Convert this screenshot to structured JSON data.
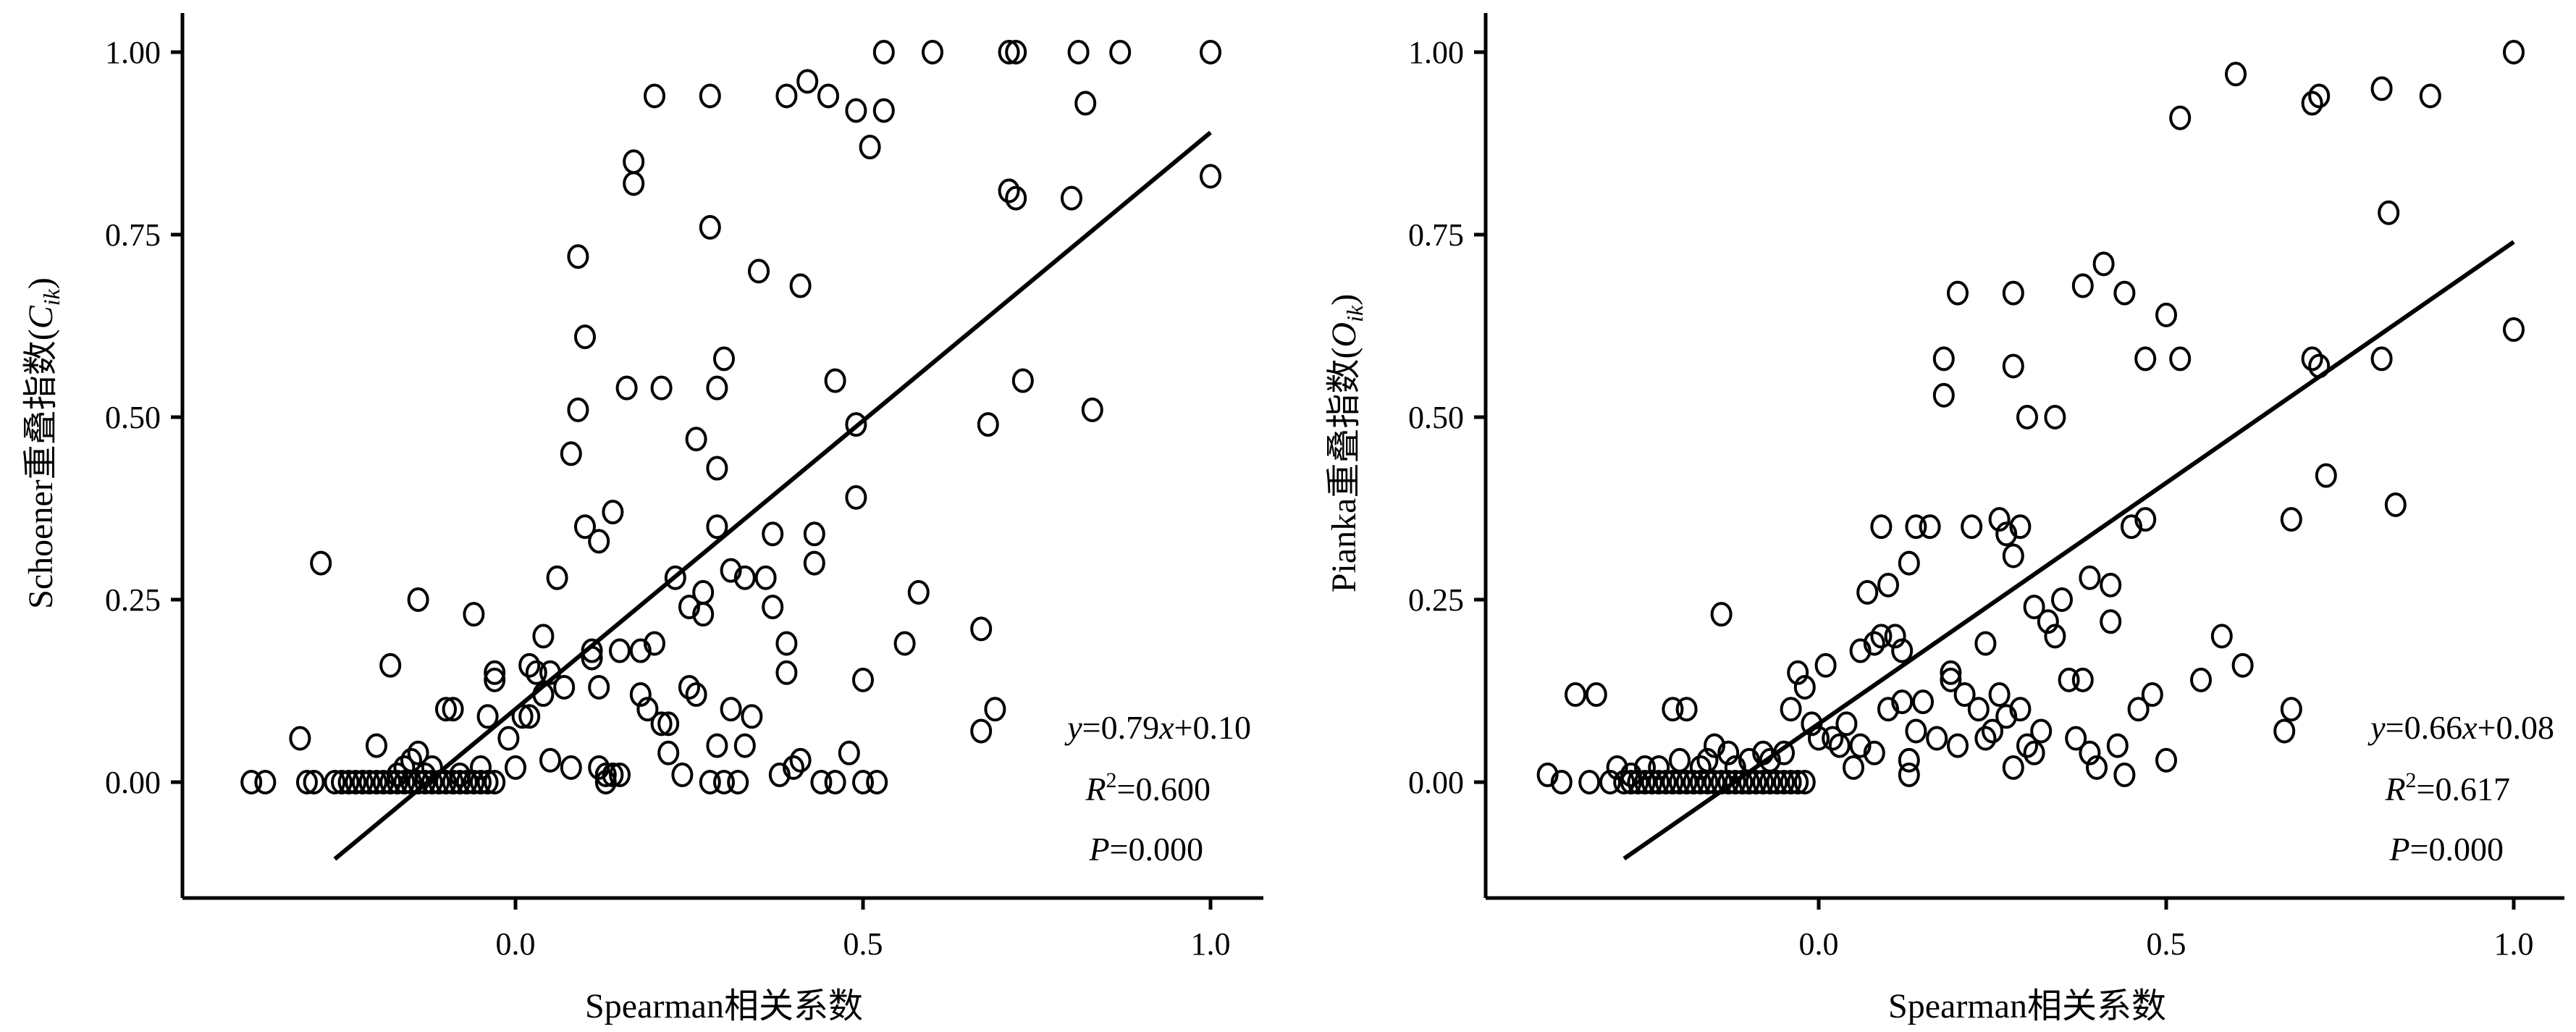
{
  "chart_data": [
    {
      "type": "scatter",
      "xlabel": "Spearman相关系数",
      "ylabel_main": "Schoener重叠指数(",
      "ylabel_var": "C",
      "ylabel_sub": "ik",
      "ylabel_close": ")",
      "xlim": [
        -0.47,
        1.07
      ],
      "ylim": [
        -0.16,
        1.06
      ],
      "xticks": [
        0.0,
        0.5,
        1.0
      ],
      "xtick_labels": [
        "0.0",
        "0.5",
        "1.0"
      ],
      "yticks": [
        0.0,
        0.25,
        0.5,
        0.75,
        1.0
      ],
      "ytick_labels": [
        "0.00",
        "0.25",
        "0.50",
        "0.75",
        "1.00"
      ],
      "fit": {
        "slope": 0.79,
        "intercept": 0.1,
        "x_range": [
          -0.26,
          1.0
        ]
      },
      "eq_y": "y",
      "eq_mid": "=0.79",
      "eq_x": "x",
      "eq_end": "+0.10",
      "r2_label": "R",
      "r2_sup": "2",
      "r2_value": "=0.600",
      "p_label": "P",
      "p_value": "=0.000",
      "points": [
        [
          -0.38,
          0
        ],
        [
          -0.36,
          0
        ],
        [
          -0.31,
          0.06
        ],
        [
          -0.3,
          0
        ],
        [
          -0.29,
          0
        ],
        [
          -0.28,
          0.3
        ],
        [
          -0.26,
          0
        ],
        [
          -0.25,
          0
        ],
        [
          -0.24,
          0
        ],
        [
          -0.23,
          0
        ],
        [
          -0.22,
          0
        ],
        [
          -0.21,
          0
        ],
        [
          -0.2,
          0
        ],
        [
          -0.19,
          0
        ],
        [
          -0.18,
          0
        ],
        [
          -0.17,
          0
        ],
        [
          -0.16,
          0
        ],
        [
          -0.15,
          0
        ],
        [
          -0.14,
          0
        ],
        [
          -0.13,
          0
        ],
        [
          -0.12,
          0
        ],
        [
          -0.11,
          0
        ],
        [
          -0.1,
          0
        ],
        [
          -0.09,
          0
        ],
        [
          -0.08,
          0
        ],
        [
          -0.07,
          0
        ],
        [
          -0.06,
          0
        ],
        [
          -0.05,
          0
        ],
        [
          -0.04,
          0
        ],
        [
          -0.03,
          0
        ],
        [
          -0.2,
          0.05
        ],
        [
          -0.18,
          0.16
        ],
        [
          -0.17,
          0.01
        ],
        [
          -0.16,
          0.02
        ],
        [
          -0.15,
          0.03
        ],
        [
          -0.14,
          0.04
        ],
        [
          -0.14,
          0.25
        ],
        [
          -0.13,
          0.01
        ],
        [
          -0.12,
          0.02
        ],
        [
          -0.1,
          0.1
        ],
        [
          -0.09,
          0.1
        ],
        [
          -0.08,
          0.01
        ],
        [
          -0.06,
          0.23
        ],
        [
          -0.05,
          0.02
        ],
        [
          -0.04,
          0.09
        ],
        [
          -0.03,
          0.14
        ],
        [
          -0.03,
          0.15
        ],
        [
          -0.01,
          0.06
        ],
        [
          0,
          0.02
        ],
        [
          0.01,
          0.09
        ],
        [
          0.02,
          0.09
        ],
        [
          0.02,
          0.16
        ],
        [
          0.03,
          0.15
        ],
        [
          0.04,
          0.12
        ],
        [
          0.04,
          0.2
        ],
        [
          0.05,
          0.15
        ],
        [
          0.05,
          0.03
        ],
        [
          0.06,
          0.28
        ],
        [
          0.07,
          0.13
        ],
        [
          0.08,
          0.45
        ],
        [
          0.08,
          0.02
        ],
        [
          0.09,
          0.72
        ],
        [
          0.09,
          0.51
        ],
        [
          0.1,
          0.61
        ],
        [
          0.1,
          0.35
        ],
        [
          0.11,
          0.18
        ],
        [
          0.11,
          0.17
        ],
        [
          0.12,
          0.13
        ],
        [
          0.12,
          0.33
        ],
        [
          0.12,
          0.02
        ],
        [
          0.13,
          0.01
        ],
        [
          0.13,
          0
        ],
        [
          0.14,
          0.37
        ],
        [
          0.14,
          0.01
        ],
        [
          0.15,
          0.18
        ],
        [
          0.15,
          0.01
        ],
        [
          0.16,
          0.54
        ],
        [
          0.17,
          0.85
        ],
        [
          0.17,
          0.82
        ],
        [
          0.18,
          0.18
        ],
        [
          0.18,
          0.12
        ],
        [
          0.19,
          0.1
        ],
        [
          0.2,
          0.94
        ],
        [
          0.2,
          0.19
        ],
        [
          0.21,
          0.08
        ],
        [
          0.21,
          0.54
        ],
        [
          0.22,
          0.08
        ],
        [
          0.22,
          0.04
        ],
        [
          0.23,
          0.28
        ],
        [
          0.24,
          0.01
        ],
        [
          0.25,
          0.13
        ],
        [
          0.25,
          0.24
        ],
        [
          0.26,
          0.47
        ],
        [
          0.26,
          0.12
        ],
        [
          0.27,
          0.26
        ],
        [
          0.27,
          0.23
        ],
        [
          0.28,
          0.94
        ],
        [
          0.28,
          0.76
        ],
        [
          0.28,
          0
        ],
        [
          0.29,
          0.35
        ],
        [
          0.29,
          0.54
        ],
        [
          0.29,
          0.43
        ],
        [
          0.29,
          0.05
        ],
        [
          0.3,
          0.58
        ],
        [
          0.3,
          0
        ],
        [
          0.31,
          0.29
        ],
        [
          0.31,
          0.1
        ],
        [
          0.32,
          0
        ],
        [
          0.33,
          0.05
        ],
        [
          0.33,
          0.28
        ],
        [
          0.34,
          0.09
        ],
        [
          0.35,
          0.7
        ],
        [
          0.36,
          0.28
        ],
        [
          0.37,
          0.34
        ],
        [
          0.37,
          0.24
        ],
        [
          0.38,
          0.01
        ],
        [
          0.39,
          0.19
        ],
        [
          0.39,
          0.15
        ],
        [
          0.39,
          0.94
        ],
        [
          0.4,
          0.02
        ],
        [
          0.41,
          0.68
        ],
        [
          0.41,
          0.03
        ],
        [
          0.42,
          0.96
        ],
        [
          0.43,
          0.34
        ],
        [
          0.43,
          0.3
        ],
        [
          0.44,
          0
        ],
        [
          0.45,
          0.94
        ],
        [
          0.46,
          0
        ],
        [
          0.46,
          0.55
        ],
        [
          0.48,
          0.04
        ],
        [
          0.49,
          0.92
        ],
        [
          0.49,
          0.49
        ],
        [
          0.49,
          0.39
        ],
        [
          0.5,
          0.14
        ],
        [
          0.5,
          0
        ],
        [
          0.51,
          0.87
        ],
        [
          0.52,
          0
        ],
        [
          0.53,
          0.92
        ],
        [
          0.53,
          1
        ],
        [
          0.56,
          0.19
        ],
        [
          0.58,
          0.26
        ],
        [
          0.6,
          1
        ],
        [
          0.67,
          0.21
        ],
        [
          0.67,
          0.07
        ],
        [
          0.68,
          0.49
        ],
        [
          0.69,
          0.1
        ],
        [
          0.71,
          1
        ],
        [
          0.71,
          0.81
        ],
        [
          0.72,
          0.8
        ],
        [
          0.72,
          1
        ],
        [
          0.73,
          0.55
        ],
        [
          0.8,
          0.8
        ],
        [
          0.81,
          1
        ],
        [
          0.82,
          0.93
        ],
        [
          0.83,
          0.51
        ],
        [
          0.87,
          1
        ],
        [
          1,
          1
        ],
        [
          1,
          0.83
        ]
      ]
    },
    {
      "type": "scatter",
      "xlabel": "Spearman相关系数",
      "ylabel_main": "Pianka重叠指数(",
      "ylabel_var": "O",
      "ylabel_sub": "ik",
      "ylabel_close": ")",
      "xlim": [
        -0.47,
        1.07
      ],
      "ylim": [
        -0.16,
        1.06
      ],
      "xticks": [
        0.0,
        0.5,
        1.0
      ],
      "xtick_labels": [
        "0.0",
        "0.5",
        "1.0"
      ],
      "yticks": [
        0.0,
        0.25,
        0.5,
        0.75,
        1.0
      ],
      "ytick_labels": [
        "0.00",
        "0.25",
        "0.50",
        "0.75",
        "1.00"
      ],
      "fit": {
        "slope": 0.66,
        "intercept": 0.08,
        "x_range": [
          -0.28,
          1.0
        ]
      },
      "eq_y": "y",
      "eq_mid": "=0.66",
      "eq_x": "x",
      "eq_end": "+0.08",
      "r2_label": "R",
      "r2_sup": "2",
      "r2_value": "=0.617",
      "p_label": "P",
      "p_value": "=0.000",
      "points": [
        [
          -0.39,
          0.01
        ],
        [
          -0.37,
          0
        ],
        [
          -0.35,
          0.12
        ],
        [
          -0.33,
          0
        ],
        [
          -0.32,
          0.12
        ],
        [
          -0.3,
          0
        ],
        [
          -0.29,
          0.02
        ],
        [
          -0.28,
          0
        ],
        [
          -0.27,
          0
        ],
        [
          -0.26,
          0
        ],
        [
          -0.25,
          0
        ],
        [
          -0.24,
          0
        ],
        [
          -0.23,
          0
        ],
        [
          -0.22,
          0
        ],
        [
          -0.21,
          0
        ],
        [
          -0.2,
          0
        ],
        [
          -0.19,
          0
        ],
        [
          -0.18,
          0
        ],
        [
          -0.17,
          0
        ],
        [
          -0.16,
          0
        ],
        [
          -0.15,
          0
        ],
        [
          -0.14,
          0
        ],
        [
          -0.13,
          0
        ],
        [
          -0.12,
          0
        ],
        [
          -0.11,
          0
        ],
        [
          -0.1,
          0
        ],
        [
          -0.09,
          0
        ],
        [
          -0.08,
          0
        ],
        [
          -0.07,
          0
        ],
        [
          -0.06,
          0
        ],
        [
          -0.05,
          0
        ],
        [
          -0.04,
          0
        ],
        [
          -0.03,
          0
        ],
        [
          -0.02,
          0
        ],
        [
          -0.27,
          0.01
        ],
        [
          -0.25,
          0.02
        ],
        [
          -0.23,
          0.02
        ],
        [
          -0.21,
          0.1
        ],
        [
          -0.2,
          0.03
        ],
        [
          -0.19,
          0.1
        ],
        [
          -0.17,
          0.02
        ],
        [
          -0.16,
          0.03
        ],
        [
          -0.15,
          0.05
        ],
        [
          -0.14,
          0.23
        ],
        [
          -0.13,
          0.04
        ],
        [
          -0.12,
          0.02
        ],
        [
          -0.1,
          0.03
        ],
        [
          -0.08,
          0.04
        ],
        [
          -0.07,
          0.03
        ],
        [
          -0.05,
          0.04
        ],
        [
          -0.04,
          0.1
        ],
        [
          -0.03,
          0.15
        ],
        [
          -0.02,
          0.13
        ],
        [
          -0.01,
          0.08
        ],
        [
          0,
          0.06
        ],
        [
          0.01,
          0.16
        ],
        [
          0.02,
          0.06
        ],
        [
          0.03,
          0.05
        ],
        [
          0.04,
          0.08
        ],
        [
          0.05,
          0.02
        ],
        [
          0.06,
          0.05
        ],
        [
          0.06,
          0.18
        ],
        [
          0.07,
          0.26
        ],
        [
          0.08,
          0.19
        ],
        [
          0.08,
          0.04
        ],
        [
          0.09,
          0.35
        ],
        [
          0.09,
          0.2
        ],
        [
          0.1,
          0.27
        ],
        [
          0.1,
          0.1
        ],
        [
          0.11,
          0.2
        ],
        [
          0.12,
          0.18
        ],
        [
          0.12,
          0.11
        ],
        [
          0.13,
          0.3
        ],
        [
          0.13,
          0.01
        ],
        [
          0.13,
          0.03
        ],
        [
          0.14,
          0.35
        ],
        [
          0.14,
          0.07
        ],
        [
          0.15,
          0.11
        ],
        [
          0.16,
          0.35
        ],
        [
          0.17,
          0.06
        ],
        [
          0.18,
          0.58
        ],
        [
          0.18,
          0.53
        ],
        [
          0.19,
          0.15
        ],
        [
          0.19,
          0.14
        ],
        [
          0.2,
          0.67
        ],
        [
          0.2,
          0.05
        ],
        [
          0.21,
          0.12
        ],
        [
          0.22,
          0.35
        ],
        [
          0.23,
          0.1
        ],
        [
          0.24,
          0.06
        ],
        [
          0.24,
          0.19
        ],
        [
          0.25,
          0.07
        ],
        [
          0.26,
          0.36
        ],
        [
          0.26,
          0.12
        ],
        [
          0.27,
          0.34
        ],
        [
          0.27,
          0.09
        ],
        [
          0.28,
          0.67
        ],
        [
          0.28,
          0.57
        ],
        [
          0.28,
          0.31
        ],
        [
          0.28,
          0.02
        ],
        [
          0.29,
          0.35
        ],
        [
          0.29,
          0.1
        ],
        [
          0.3,
          0.5
        ],
        [
          0.3,
          0.05
        ],
        [
          0.31,
          0.04
        ],
        [
          0.31,
          0.24
        ],
        [
          0.32,
          0.07
        ],
        [
          0.33,
          0.22
        ],
        [
          0.34,
          0.5
        ],
        [
          0.34,
          0.2
        ],
        [
          0.35,
          0.25
        ],
        [
          0.36,
          0.14
        ],
        [
          0.37,
          0.06
        ],
        [
          0.38,
          0.68
        ],
        [
          0.38,
          0.14
        ],
        [
          0.39,
          0.28
        ],
        [
          0.39,
          0.04
        ],
        [
          0.4,
          0.02
        ],
        [
          0.41,
          0.71
        ],
        [
          0.42,
          0.22
        ],
        [
          0.42,
          0.27
        ],
        [
          0.43,
          0.05
        ],
        [
          0.44,
          0.67
        ],
        [
          0.44,
          0.01
        ],
        [
          0.45,
          0.35
        ],
        [
          0.46,
          0.1
        ],
        [
          0.47,
          0.58
        ],
        [
          0.47,
          0.36
        ],
        [
          0.48,
          0.12
        ],
        [
          0.5,
          0.64
        ],
        [
          0.5,
          0.03
        ],
        [
          0.52,
          0.58
        ],
        [
          0.52,
          0.91
        ],
        [
          0.55,
          0.14
        ],
        [
          0.58,
          0.2
        ],
        [
          0.6,
          0.97
        ],
        [
          0.61,
          0.16
        ],
        [
          0.67,
          0.07
        ],
        [
          0.68,
          0.36
        ],
        [
          0.68,
          0.1
        ],
        [
          0.71,
          0.93
        ],
        [
          0.71,
          0.58
        ],
        [
          0.72,
          0.94
        ],
        [
          0.72,
          0.57
        ],
        [
          0.73,
          0.42
        ],
        [
          0.81,
          0.95
        ],
        [
          0.81,
          0.58
        ],
        [
          0.82,
          0.78
        ],
        [
          0.83,
          0.38
        ],
        [
          0.88,
          0.94
        ],
        [
          1,
          1
        ],
        [
          1,
          0.62
        ]
      ]
    }
  ]
}
